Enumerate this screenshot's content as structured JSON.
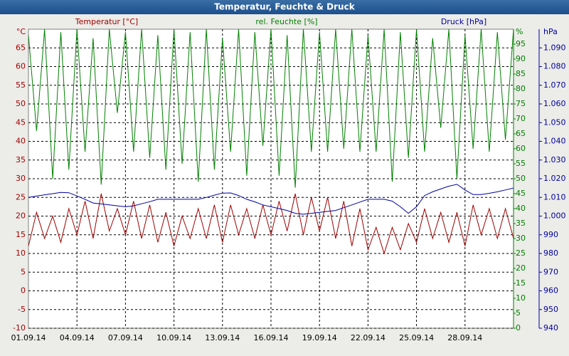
{
  "chart_data": {
    "type": "line",
    "title": "Temperatur, Feuchte & Druck",
    "x": [
      0,
      0.5,
      1,
      1.5,
      2,
      2.5,
      3,
      3.5,
      4,
      4.5,
      5,
      5.5,
      6,
      6.5,
      7,
      7.5,
      8,
      8.5,
      9,
      9.5,
      10,
      10.5,
      11,
      11.5,
      12,
      12.5,
      13,
      13.5,
      14,
      14.5,
      15,
      15.5,
      16,
      16.5,
      17,
      17.5,
      18,
      18.5,
      19,
      19.5,
      20,
      20.5,
      21,
      21.5,
      22,
      22.5,
      23,
      23.5,
      24,
      24.5,
      25,
      25.5,
      26,
      26.5,
      27,
      27.5,
      28,
      28.5,
      29,
      29.5,
      30
    ],
    "xlim": [
      0,
      30
    ],
    "xticks": [
      {
        "value": 0,
        "label": "01.09.14"
      },
      {
        "value": 3,
        "label": "04.09.14"
      },
      {
        "value": 6,
        "label": "07.09.14"
      },
      {
        "value": 9,
        "label": "10.09.14"
      },
      {
        "value": 12,
        "label": "13.09.14"
      },
      {
        "value": 15,
        "label": "16.09.14"
      },
      {
        "value": 18,
        "label": "19.09.14"
      },
      {
        "value": 21,
        "label": "22.09.14"
      },
      {
        "value": 24,
        "label": "25.09.14"
      },
      {
        "value": 27,
        "label": "28.09.14"
      }
    ],
    "ylim": [
      -10,
      70
    ],
    "yticks": [
      -10,
      -5,
      0,
      5,
      10,
      15,
      20,
      25,
      30,
      35,
      40,
      45,
      50,
      55,
      60,
      65
    ],
    "y_unit": "°C",
    "y2lim": [
      0,
      100
    ],
    "y2ticks": [
      0,
      5,
      10,
      15,
      20,
      25,
      30,
      35,
      40,
      45,
      50,
      55,
      60,
      65,
      70,
      75,
      80,
      85,
      90,
      95
    ],
    "y2_unit": "%",
    "y3lim": [
      940,
      1100
    ],
    "y3ticks": [
      940,
      950,
      960,
      970,
      980,
      990,
      {
        "value": 1000,
        "label": "1.000"
      },
      {
        "value": 1010,
        "label": "1.010"
      },
      {
        "value": 1020,
        "label": "1.020"
      },
      {
        "value": 1030,
        "label": "1.030"
      },
      {
        "value": 1040,
        "label": "1.040"
      },
      {
        "value": 1050,
        "label": "1.050"
      },
      {
        "value": 1060,
        "label": "1.060"
      },
      {
        "value": 1070,
        "label": "1.070"
      },
      {
        "value": 1080,
        "label": "1.080"
      },
      {
        "value": 1090,
        "label": "1.090"
      }
    ],
    "y3_unit": "hPa",
    "grid": true,
    "series": [
      {
        "name": "Temperatur [°C]",
        "color": "#a00000",
        "axis": "y",
        "values": [
          12,
          21,
          14,
          20,
          13,
          22,
          15,
          24,
          14,
          26,
          16,
          22,
          15,
          24,
          14,
          23,
          13,
          21,
          12,
          20,
          14,
          22,
          14,
          23,
          13,
          23,
          15,
          22,
          14,
          23,
          15,
          24,
          16,
          26,
          15,
          25,
          16,
          25,
          14,
          24,
          12,
          22,
          11,
          17,
          10,
          17,
          11,
          18,
          13,
          22,
          14,
          21,
          13,
          21,
          12,
          23,
          15,
          22,
          14,
          22,
          14
        ]
      },
      {
        "name": "rel. Feuchte [%]",
        "color": "#008000",
        "axis": "y2",
        "values": [
          98,
          66,
          100,
          50,
          99,
          53,
          100,
          59,
          97,
          48,
          100,
          72,
          99,
          59,
          100,
          57,
          98,
          53,
          100,
          55,
          99,
          49,
          100,
          53,
          97,
          59,
          100,
          51,
          99,
          61,
          100,
          51,
          98,
          47,
          100,
          59,
          99,
          59,
          100,
          60,
          100,
          59,
          98,
          59,
          100,
          49,
          99,
          57,
          100,
          59,
          97,
          67,
          100,
          50,
          98,
          60,
          100,
          59,
          99,
          63,
          100
        ]
      },
      {
        "name": "Druck [hPa]",
        "color": "#0000a0",
        "axis": "y3",
        "values": [
          1010,
          1010.7,
          1011.4,
          1012,
          1012.7,
          1012.5,
          1010.8,
          1009,
          1007,
          1006.5,
          1006,
          1005.5,
          1005,
          1005.5,
          1006.6,
          1007.7,
          1009,
          1009,
          1009,
          1009,
          1009,
          1009,
          1010,
          1011.2,
          1012.3,
          1012.4,
          1011,
          1009,
          1007.6,
          1006,
          1005,
          1004,
          1003,
          1001.5,
          1001,
          1001.5,
          1002,
          1002.5,
          1003,
          1004.5,
          1006,
          1007.5,
          1009,
          1009,
          1009,
          1008,
          1005,
          1001.5,
          1005,
          1011,
          1013,
          1014.5,
          1016,
          1017,
          1014,
          1011.5,
          1011.5,
          1012.2,
          1013,
          1014,
          1015
        ]
      }
    ]
  }
}
